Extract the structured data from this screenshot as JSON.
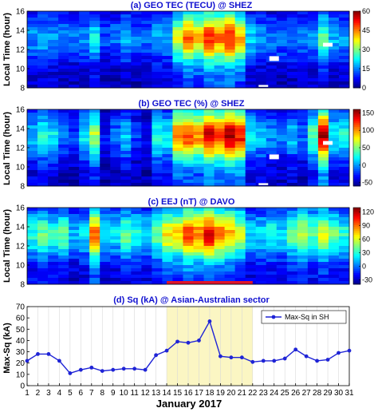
{
  "chart_data": [
    {
      "type": "heatmap",
      "title": "(a) GEO TEC (TECU) @ SHEZ",
      "ylabel": "Local Time (hour)",
      "yticks": [
        "8",
        "10",
        "12",
        "14",
        "16"
      ],
      "ylim": [
        8,
        16
      ],
      "xlim": [
        1,
        31
      ],
      "colorbar": {
        "ticks": [
          "0",
          "15",
          "30",
          "45",
          "60"
        ],
        "range": [
          0,
          60
        ]
      },
      "scale": "jet",
      "daily_peak": [
        16,
        18,
        17,
        15,
        14,
        16,
        22,
        12,
        14,
        18,
        14,
        14,
        18,
        17,
        35,
        46,
        40,
        50,
        46,
        52,
        42,
        20,
        16,
        14,
        14,
        15,
        14,
        16,
        28,
        18,
        17
      ],
      "gaps": [
        {
          "day": 24,
          "hours": [
            10.8,
            11.3
          ]
        },
        {
          "day": 23,
          "hours": [
            8.1,
            8.3
          ]
        },
        {
          "day": 29,
          "hours": [
            12.3,
            12.7
          ]
        }
      ]
    },
    {
      "type": "heatmap",
      "title": "(b) GEO TEC (%) @ SHEZ",
      "ylabel": "Local Time (hour)",
      "yticks": [
        "8",
        "10",
        "12",
        "14",
        "16"
      ],
      "ylim": [
        8,
        16
      ],
      "xlim": [
        1,
        31
      ],
      "colorbar": {
        "ticks": [
          "-50",
          "0",
          "50",
          "100",
          "150"
        ],
        "range": [
          -60,
          160
        ]
      },
      "scale": "jet",
      "daily_peak": [
        10,
        30,
        20,
        -10,
        -20,
        20,
        60,
        -30,
        -10,
        10,
        -20,
        -30,
        30,
        20,
        110,
        120,
        100,
        140,
        120,
        150,
        130,
        20,
        10,
        0,
        -10,
        10,
        -10,
        40,
        150,
        20,
        30
      ],
      "gaps": [
        {
          "day": 24,
          "hours": [
            10.8,
            11.3
          ]
        },
        {
          "day": 23,
          "hours": [
            8.1,
            8.3
          ]
        },
        {
          "day": 29,
          "hours": [
            12.3,
            12.7
          ]
        }
      ]
    },
    {
      "type": "heatmap",
      "title": "(c) EEJ (nT) @ DAVO",
      "ylabel": "Local Time (hour)",
      "yticks": [
        "8",
        "10",
        "12",
        "14",
        "16"
      ],
      "ylim": [
        8,
        16
      ],
      "xlim": [
        1,
        31
      ],
      "colorbar": {
        "ticks": [
          "-30",
          "0",
          "30",
          "60",
          "90",
          "120"
        ],
        "range": [
          -40,
          130
        ]
      },
      "scale": "jet",
      "daily_peak": [
        30,
        40,
        30,
        40,
        10,
        20,
        90,
        20,
        20,
        40,
        30,
        20,
        40,
        70,
        70,
        100,
        90,
        110,
        90,
        80,
        60,
        20,
        20,
        30,
        20,
        40,
        60,
        40,
        60,
        40,
        30
      ],
      "highlight_bar": {
        "from_day": 14,
        "to_day": 22
      }
    },
    {
      "type": "line",
      "title": "(d) Sq (kA) @ Asian-Australian sector",
      "xlabel": "January 2017",
      "ylabel": "Max-Sq (kA)",
      "ylim": [
        0,
        70
      ],
      "yticks": [
        "0",
        "10",
        "20",
        "30",
        "40",
        "50",
        "60",
        "70"
      ],
      "xlim": [
        1,
        31
      ],
      "x": [
        1,
        2,
        3,
        4,
        5,
        6,
        7,
        8,
        9,
        10,
        11,
        12,
        13,
        14,
        15,
        16,
        17,
        18,
        19,
        20,
        21,
        22,
        23,
        24,
        25,
        26,
        27,
        28,
        29,
        30,
        31
      ],
      "xtick_labels": [
        "1",
        "2",
        "3",
        "4",
        "5",
        "6",
        "7",
        "8",
        "9",
        "10",
        "11",
        "12",
        "13",
        "14",
        "15",
        "16",
        "17",
        "18",
        "19",
        "20",
        "21",
        "22",
        "23",
        "24",
        "25",
        "26",
        "27",
        "28",
        "29",
        "30",
        "31"
      ],
      "series": [
        {
          "name": "Max-Sq in SH",
          "values": [
            22,
            28,
            28,
            22,
            11,
            14,
            16,
            13,
            14,
            15,
            15,
            14,
            27,
            31,
            39,
            38,
            40,
            57,
            26,
            25,
            25,
            21,
            22,
            22,
            24,
            32,
            26,
            22,
            23,
            29,
            31
          ]
        }
      ],
      "shaded_span": [
        14,
        22
      ],
      "legend": "top-right",
      "grid": "vertical"
    }
  ],
  "colors": {
    "title": "#1010d0",
    "line": "#1f24d6",
    "shade": "#fbf6c3",
    "highlight_bar": "#e0142a"
  }
}
